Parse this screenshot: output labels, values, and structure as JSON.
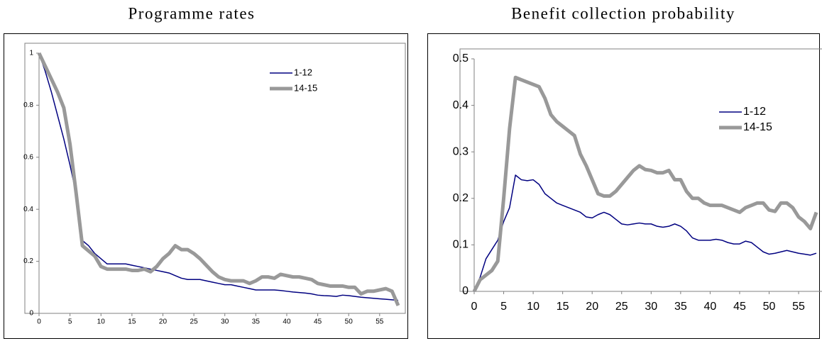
{
  "chart_data": [
    {
      "type": "line",
      "title": "Programme rates",
      "x": [
        0,
        1,
        2,
        3,
        4,
        5,
        6,
        7,
        8,
        9,
        10,
        11,
        12,
        13,
        14,
        15,
        16,
        17,
        18,
        19,
        20,
        21,
        22,
        23,
        24,
        25,
        26,
        27,
        28,
        29,
        30,
        31,
        32,
        33,
        34,
        35,
        36,
        37,
        38,
        39,
        40,
        41,
        42,
        43,
        44,
        45,
        46,
        47,
        48,
        49,
        50,
        51,
        52,
        53,
        54,
        55,
        56,
        57,
        58
      ],
      "series": [
        {
          "name": "1-12",
          "color": "#000080",
          "line_width": 1.5,
          "values": [
            1,
            0.93,
            0.85,
            0.76,
            0.67,
            0.57,
            0.46,
            0.28,
            0.26,
            0.23,
            0.21,
            0.19,
            0.19,
            0.19,
            0.19,
            0.185,
            0.18,
            0.175,
            0.17,
            0.165,
            0.16,
            0.155,
            0.145,
            0.135,
            0.13,
            0.13,
            0.13,
            0.125,
            0.12,
            0.115,
            0.11,
            0.11,
            0.105,
            0.1,
            0.095,
            0.09,
            0.09,
            0.09,
            0.09,
            0.088,
            0.085,
            0.082,
            0.08,
            0.078,
            0.075,
            0.07,
            0.068,
            0.067,
            0.065,
            0.07,
            0.068,
            0.065,
            0.062,
            0.06,
            0.058,
            0.056,
            0.054,
            0.052,
            0.05
          ]
        },
        {
          "name": "14-15",
          "color": "#999999",
          "line_width": 5,
          "values": [
            1,
            0.95,
            0.9,
            0.85,
            0.79,
            0.65,
            0.46,
            0.26,
            0.24,
            0.22,
            0.18,
            0.17,
            0.17,
            0.17,
            0.17,
            0.165,
            0.165,
            0.17,
            0.16,
            0.18,
            0.21,
            0.23,
            0.26,
            0.245,
            0.245,
            0.23,
            0.21,
            0.185,
            0.16,
            0.14,
            0.13,
            0.125,
            0.125,
            0.125,
            0.115,
            0.125,
            0.14,
            0.14,
            0.135,
            0.15,
            0.145,
            0.14,
            0.14,
            0.135,
            0.13,
            0.115,
            0.11,
            0.105,
            0.105,
            0.105,
            0.1,
            0.1,
            0.075,
            0.085,
            0.085,
            0.09,
            0.095,
            0.085,
            0.03
          ]
        }
      ],
      "xlim": [
        0,
        58
      ],
      "xticks": [
        0,
        5,
        10,
        15,
        20,
        25,
        30,
        35,
        40,
        45,
        50,
        55
      ],
      "ylim": [
        0,
        1
      ],
      "yticks": [
        0,
        0.2,
        0.4,
        0.6,
        0.8,
        1
      ],
      "legend": "upper right"
    },
    {
      "type": "line",
      "title": "Benefit collection probability",
      "x": [
        0,
        1,
        2,
        3,
        4,
        5,
        6,
        7,
        8,
        9,
        10,
        11,
        12,
        13,
        14,
        15,
        16,
        17,
        18,
        19,
        20,
        21,
        22,
        23,
        24,
        25,
        26,
        27,
        28,
        29,
        30,
        31,
        32,
        33,
        34,
        35,
        36,
        37,
        38,
        39,
        40,
        41,
        42,
        43,
        44,
        45,
        46,
        47,
        48,
        49,
        50,
        51,
        52,
        53,
        54,
        55,
        56,
        57,
        58
      ],
      "series": [
        {
          "name": "1-12",
          "color": "#000080",
          "line_width": 1.5,
          "values": [
            0,
            0.03,
            0.07,
            0.09,
            0.11,
            0.15,
            0.18,
            0.25,
            0.24,
            0.238,
            0.24,
            0.23,
            0.21,
            0.2,
            0.19,
            0.185,
            0.18,
            0.175,
            0.17,
            0.16,
            0.158,
            0.165,
            0.17,
            0.165,
            0.155,
            0.145,
            0.143,
            0.145,
            0.147,
            0.145,
            0.145,
            0.14,
            0.138,
            0.14,
            0.145,
            0.14,
            0.13,
            0.115,
            0.11,
            0.11,
            0.11,
            0.112,
            0.11,
            0.105,
            0.102,
            0.102,
            0.108,
            0.105,
            0.095,
            0.085,
            0.08,
            0.082,
            0.085,
            0.088,
            0.085,
            0.082,
            0.08,
            0.078,
            0.082
          ]
        },
        {
          "name": "14-15",
          "color": "#999999",
          "line_width": 5,
          "values": [
            0,
            0.025,
            0.035,
            0.045,
            0.065,
            0.2,
            0.35,
            0.46,
            0.455,
            0.45,
            0.445,
            0.44,
            0.415,
            0.38,
            0.365,
            0.355,
            0.345,
            0.335,
            0.295,
            0.27,
            0.24,
            0.21,
            0.205,
            0.205,
            0.215,
            0.23,
            0.245,
            0.26,
            0.27,
            0.262,
            0.26,
            0.255,
            0.255,
            0.26,
            0.24,
            0.24,
            0.215,
            0.2,
            0.2,
            0.19,
            0.185,
            0.185,
            0.185,
            0.18,
            0.175,
            0.17,
            0.18,
            0.185,
            0.19,
            0.19,
            0.175,
            0.172,
            0.19,
            0.19,
            0.18,
            0.16,
            0.15,
            0.135,
            0.17
          ]
        }
      ],
      "xlim": [
        0,
        58
      ],
      "xticks": [
        0,
        5,
        10,
        15,
        20,
        25,
        30,
        35,
        40,
        45,
        50,
        55
      ],
      "ylim": [
        0,
        0.5
      ],
      "yticks": [
        0,
        0.1,
        0.2,
        0.3,
        0.4,
        0.5
      ],
      "legend": "upper right"
    }
  ]
}
